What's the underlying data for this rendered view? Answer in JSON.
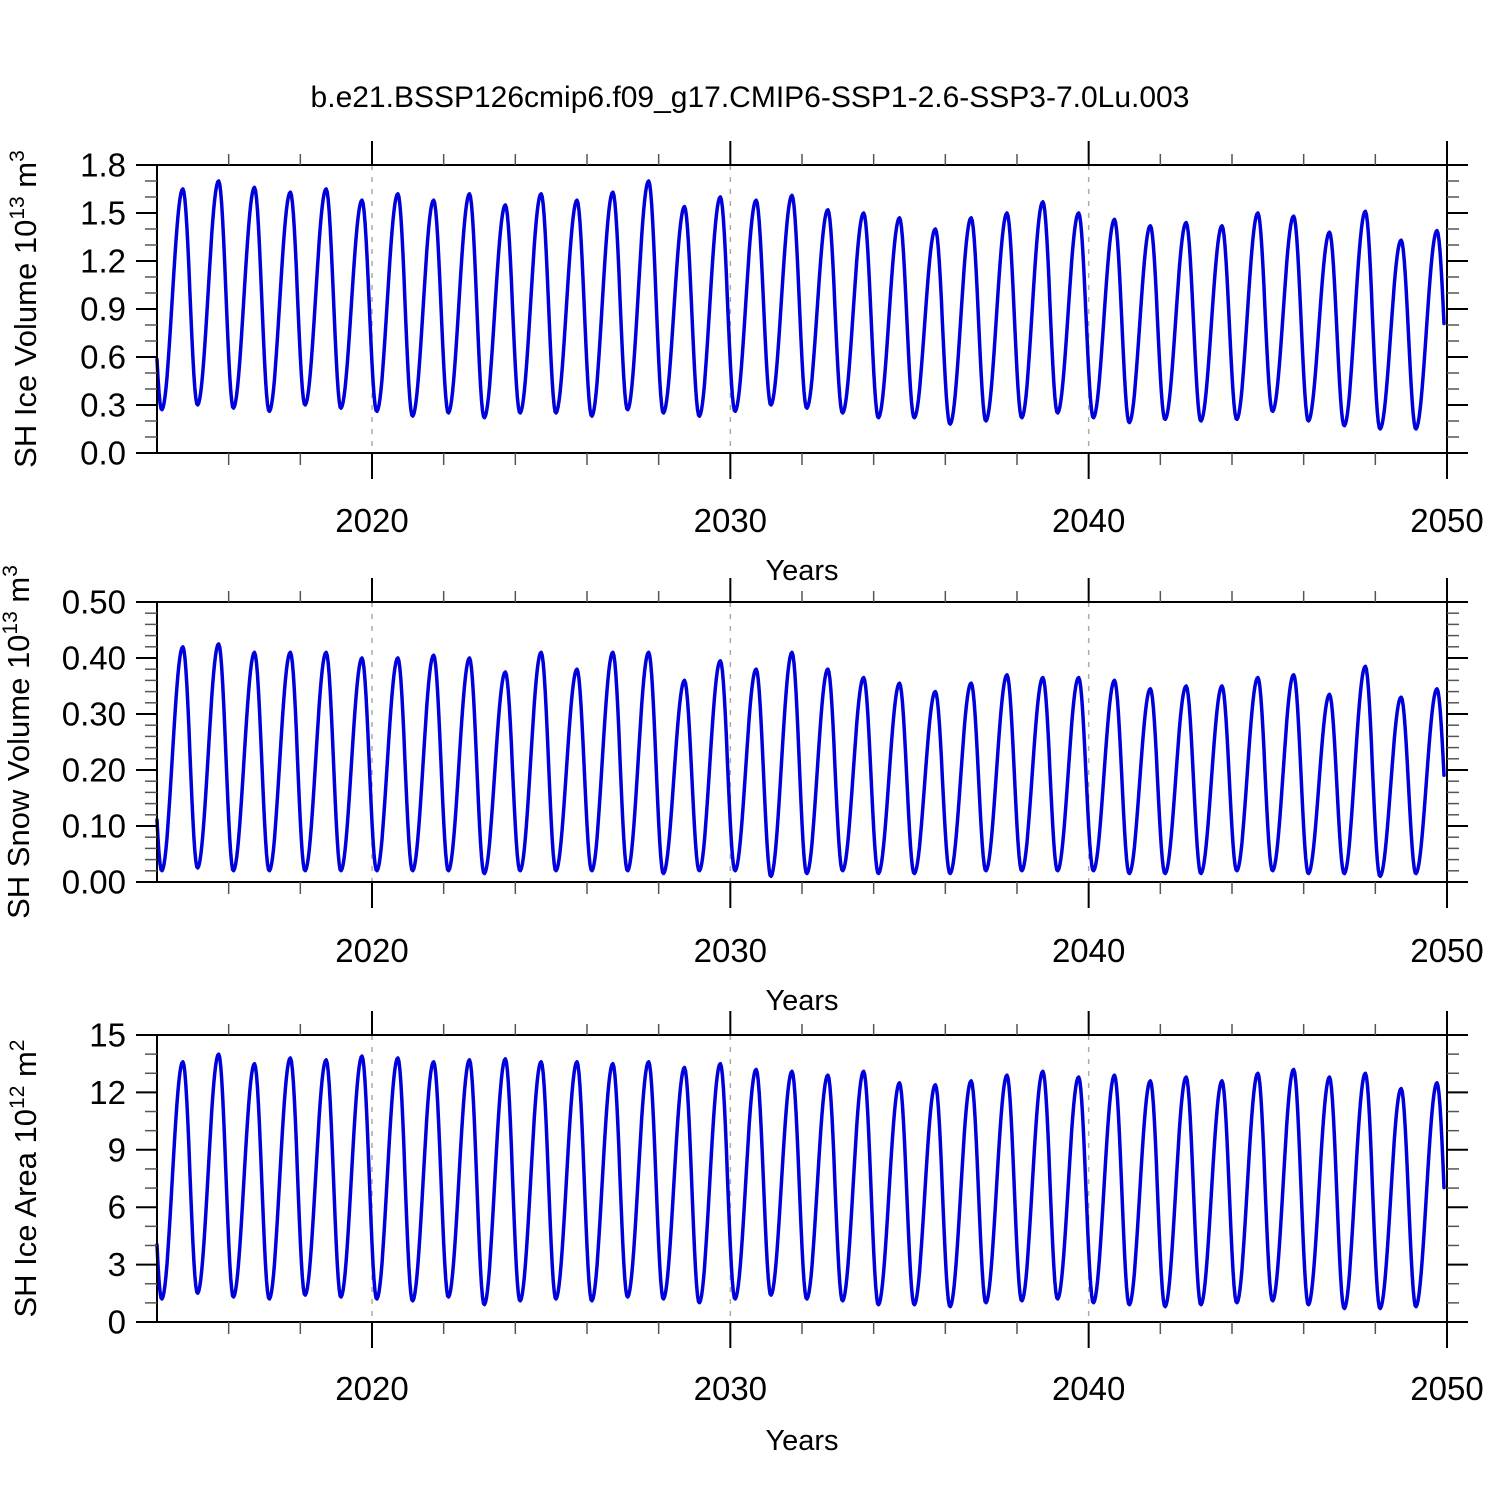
{
  "title": "b.e21.BSSP126cmip6.f09_g17.CMIP6-SSP1-2.6-SSP3-7.0Lu.003",
  "colors": {
    "line": "#0000dd",
    "frame": "#000000",
    "major_tick": "#000000",
    "minor_tick": "#555555",
    "gridline": "#aaaaaa",
    "background": "#ffffff"
  },
  "chart_data": [
    {
      "id": "sh-ice-volume",
      "type": "line",
      "series_name": "SH Ice Volume",
      "ylabel_text": "SH Ice Volume 10^13 m^3",
      "ylabel_parts": [
        {
          "text": "SH Ice Volume 10"
        },
        {
          "text": "13",
          "sup": true
        },
        {
          "text": " m"
        },
        {
          "text": "3",
          "sup": true
        }
      ],
      "ylim": [
        0,
        1.8
      ],
      "ytick_values": [
        0.0,
        0.3,
        0.6,
        0.9,
        1.2,
        1.5,
        1.8
      ],
      "ytick_labels": [
        "0.0",
        "0.3",
        "0.6",
        "0.9",
        "1.2",
        "1.5",
        "1.8"
      ],
      "y_minor_step": 0.1,
      "x": {
        "label": "Years",
        "lim": [
          2014,
          2050
        ],
        "tick_values": [
          2020,
          2030,
          2040,
          2050
        ],
        "tick_labels": [
          "2020",
          "2030",
          "2040",
          "2050"
        ],
        "minor_step": 2,
        "gridlines": [
          2020,
          2030,
          2040
        ]
      },
      "seasonal_cycle": {
        "note": "monthly seasonal cycle read from plot; annual maxima ~September, minima ~February",
        "year_start": 2014,
        "min_phase": 0.13,
        "max_phase": 0.72,
        "end_x": 2049.92,
        "annual_max": [
          1.65,
          1.7,
          1.66,
          1.63,
          1.65,
          1.58,
          1.62,
          1.58,
          1.62,
          1.55,
          1.62,
          1.58,
          1.63,
          1.7,
          1.54,
          1.6,
          1.58,
          1.61,
          1.52,
          1.5,
          1.47,
          1.4,
          1.47,
          1.5,
          1.57,
          1.5,
          1.46,
          1.42,
          1.44,
          1.42,
          1.5,
          1.48,
          1.38,
          1.51,
          1.33,
          1.39
        ],
        "annual_min": [
          0.27,
          0.3,
          0.28,
          0.26,
          0.3,
          0.28,
          0.26,
          0.23,
          0.25,
          0.22,
          0.25,
          0.25,
          0.23,
          0.27,
          0.25,
          0.23,
          0.26,
          0.3,
          0.28,
          0.25,
          0.22,
          0.22,
          0.18,
          0.2,
          0.22,
          0.25,
          0.22,
          0.19,
          0.21,
          0.2,
          0.21,
          0.26,
          0.2,
          0.17,
          0.15,
          0.15
        ]
      }
    },
    {
      "id": "sh-snow-volume",
      "type": "line",
      "series_name": "SH Snow Volume",
      "ylabel_text": "SH Snow Volume 10^13 m^3",
      "ylabel_parts": [
        {
          "text": "SH Snow Volume 10"
        },
        {
          "text": "13",
          "sup": true
        },
        {
          "text": " m"
        },
        {
          "text": "3",
          "sup": true
        }
      ],
      "ylim": [
        0,
        0.5
      ],
      "ytick_values": [
        0.0,
        0.1,
        0.2,
        0.3,
        0.4,
        0.5
      ],
      "ytick_labels": [
        "0.00",
        "0.10",
        "0.20",
        "0.30",
        "0.40",
        "0.50"
      ],
      "y_minor_step": 0.02,
      "x": {
        "label": "Years",
        "lim": [
          2014,
          2050
        ],
        "tick_values": [
          2020,
          2030,
          2040,
          2050
        ],
        "tick_labels": [
          "2020",
          "2030",
          "2040",
          "2050"
        ],
        "minor_step": 2,
        "gridlines": [
          2020,
          2030,
          2040
        ]
      },
      "seasonal_cycle": {
        "note": "monthly seasonal cycle read from plot; annual maxima ~September, minima ~February",
        "year_start": 2014,
        "min_phase": 0.13,
        "max_phase": 0.72,
        "end_x": 2049.92,
        "annual_max": [
          0.42,
          0.425,
          0.41,
          0.41,
          0.41,
          0.4,
          0.4,
          0.405,
          0.4,
          0.375,
          0.41,
          0.38,
          0.41,
          0.41,
          0.36,
          0.395,
          0.38,
          0.41,
          0.38,
          0.365,
          0.355,
          0.34,
          0.355,
          0.37,
          0.365,
          0.365,
          0.36,
          0.345,
          0.35,
          0.35,
          0.365,
          0.37,
          0.335,
          0.385,
          0.33,
          0.345
        ],
        "annual_min": [
          0.02,
          0.025,
          0.02,
          0.02,
          0.02,
          0.02,
          0.02,
          0.02,
          0.02,
          0.015,
          0.02,
          0.02,
          0.02,
          0.02,
          0.015,
          0.02,
          0.02,
          0.01,
          0.015,
          0.02,
          0.015,
          0.015,
          0.015,
          0.02,
          0.02,
          0.02,
          0.02,
          0.015,
          0.015,
          0.015,
          0.02,
          0.02,
          0.015,
          0.015,
          0.01,
          0.015
        ]
      }
    },
    {
      "id": "sh-ice-area",
      "type": "line",
      "series_name": "SH Ice Area",
      "ylabel_text": "SH Ice Area 10^12 m^2",
      "ylabel_parts": [
        {
          "text": "SH Ice Area 10"
        },
        {
          "text": "12",
          "sup": true
        },
        {
          "text": " m"
        },
        {
          "text": "2",
          "sup": true
        }
      ],
      "ylim": [
        0,
        15
      ],
      "ytick_values": [
        0,
        3,
        6,
        9,
        12,
        15
      ],
      "ytick_labels": [
        "0",
        "3",
        "6",
        "9",
        "12",
        "15"
      ],
      "y_minor_step": 1,
      "x": {
        "label": "Years",
        "lim": [
          2014,
          2050
        ],
        "tick_values": [
          2020,
          2030,
          2040,
          2050
        ],
        "tick_labels": [
          "2020",
          "2030",
          "2040",
          "2050"
        ],
        "minor_step": 2,
        "gridlines": [
          2020,
          2030,
          2040
        ]
      },
      "seasonal_cycle": {
        "note": "monthly seasonal cycle read from plot; annual maxima ~September, minima ~February",
        "year_start": 2014,
        "min_phase": 0.13,
        "max_phase": 0.72,
        "end_x": 2049.92,
        "annual_max": [
          13.6,
          14.0,
          13.5,
          13.8,
          13.7,
          13.9,
          13.8,
          13.6,
          13.7,
          13.75,
          13.6,
          13.6,
          13.5,
          13.6,
          13.3,
          13.5,
          13.2,
          13.1,
          12.9,
          13.1,
          12.5,
          12.4,
          12.6,
          12.9,
          13.1,
          12.8,
          12.9,
          12.6,
          12.8,
          12.6,
          13.0,
          13.2,
          12.8,
          13.0,
          12.2,
          12.5
        ],
        "annual_min": [
          1.2,
          1.5,
          1.3,
          1.2,
          1.4,
          1.3,
          1.2,
          1.1,
          1.3,
          0.9,
          1.1,
          1.2,
          1.1,
          1.3,
          1.2,
          1.0,
          1.2,
          1.4,
          1.2,
          1.1,
          0.9,
          0.9,
          0.8,
          1.0,
          1.1,
          1.2,
          1.0,
          0.9,
          0.8,
          0.9,
          1.0,
          1.1,
          0.9,
          0.7,
          0.7,
          0.8
        ]
      }
    }
  ]
}
